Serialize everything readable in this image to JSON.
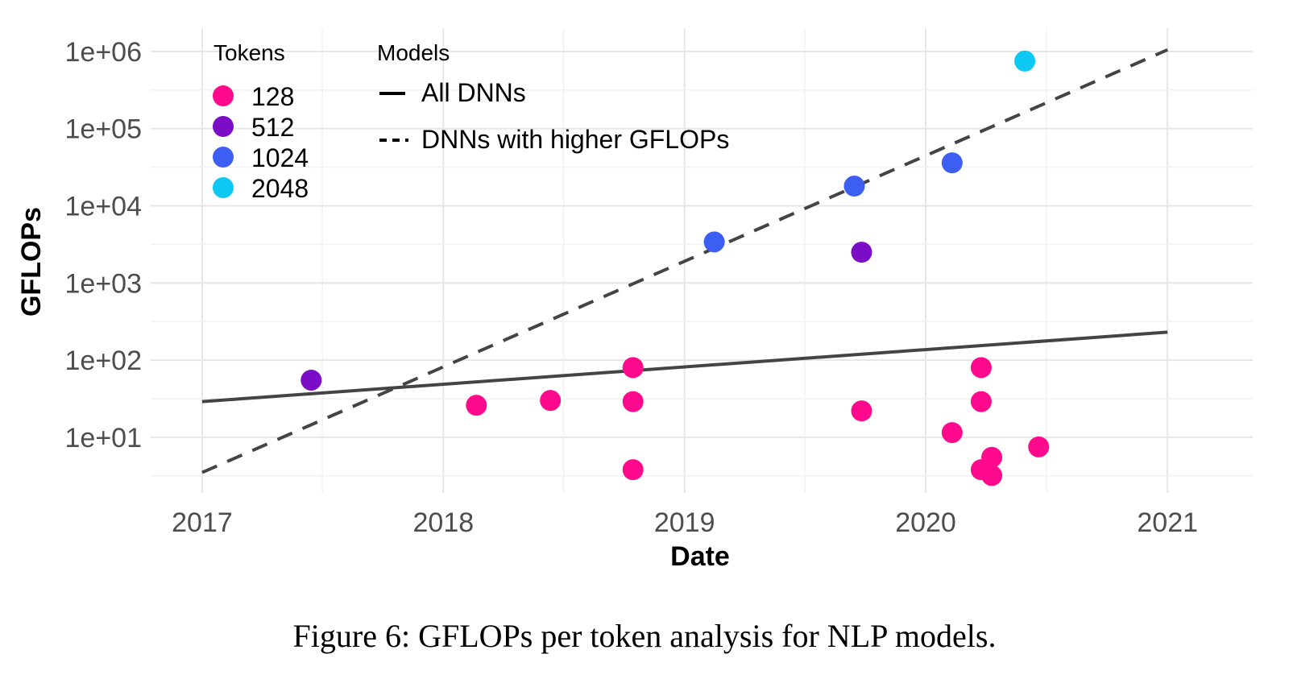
{
  "chart_data": {
    "type": "scatter",
    "xlabel": "Date",
    "ylabel": "GFLOPs",
    "xlim": [
      "2016-10-15",
      "2021-05-10"
    ],
    "ylim": [
      1.9,
      2000000
    ],
    "yscale": "log",
    "x_ticks": [
      "2017",
      "2018",
      "2019",
      "2020",
      "2021"
    ],
    "y_ticks": [
      {
        "value": 10,
        "label": "1e+01"
      },
      {
        "value": 100,
        "label": "1e+02"
      },
      {
        "value": 1000,
        "label": "1e+03"
      },
      {
        "value": 10000,
        "label": "1e+04"
      },
      {
        "value": 100000,
        "label": "1e+05"
      },
      {
        "value": 1000000,
        "label": "1e+06"
      }
    ],
    "grid": true,
    "legend_tokens": {
      "title": "Tokens",
      "placement": "top-left",
      "entries": [
        {
          "label": "128",
          "color": "#ff0a8c"
        },
        {
          "label": "512",
          "color": "#7b0dc6"
        },
        {
          "label": "1024",
          "color": "#3d5ef2"
        },
        {
          "label": "2048",
          "color": "#0dc8f2"
        }
      ]
    },
    "legend_models": {
      "title": "Models",
      "placement": "top-left",
      "entries": [
        {
          "label": "All DNNs",
          "style": "solid"
        },
        {
          "label": "DNNs with higher GFLOPs",
          "style": "dashed"
        }
      ]
    },
    "points": [
      {
        "x": "2017-06-15",
        "y": 55,
        "tokens": "512"
      },
      {
        "x": "2018-02-20",
        "y": 26,
        "tokens": "128"
      },
      {
        "x": "2018-06-12",
        "y": 30,
        "tokens": "128"
      },
      {
        "x": "2018-10-15",
        "y": 80,
        "tokens": "128"
      },
      {
        "x": "2018-10-15",
        "y": 29,
        "tokens": "128"
      },
      {
        "x": "2018-10-15",
        "y": 3.8,
        "tokens": "128"
      },
      {
        "x": "2019-02-15",
        "y": 3400,
        "tokens": "1024"
      },
      {
        "x": "2019-09-15",
        "y": 18000,
        "tokens": "1024"
      },
      {
        "x": "2019-09-26",
        "y": 2500,
        "tokens": "512"
      },
      {
        "x": "2019-09-26",
        "y": 22,
        "tokens": "128"
      },
      {
        "x": "2020-02-10",
        "y": 36000,
        "tokens": "1024"
      },
      {
        "x": "2020-02-10",
        "y": 11.5,
        "tokens": "128"
      },
      {
        "x": "2020-03-25",
        "y": 80,
        "tokens": "128"
      },
      {
        "x": "2020-03-25",
        "y": 29,
        "tokens": "128"
      },
      {
        "x": "2020-03-25",
        "y": 3.8,
        "tokens": "128"
      },
      {
        "x": "2020-04-10",
        "y": 5.5,
        "tokens": "128"
      },
      {
        "x": "2020-04-10",
        "y": 3.2,
        "tokens": "128"
      },
      {
        "x": "2020-05-30",
        "y": 750000,
        "tokens": "2048"
      },
      {
        "x": "2020-06-20",
        "y": 7.5,
        "tokens": "128"
      }
    ],
    "lines": [
      {
        "name": "All DNNs",
        "style": "solid",
        "color": "#444444",
        "x": [
          "2017-01-01",
          "2021-01-01"
        ],
        "y": [
          29,
          230
        ]
      },
      {
        "name": "DNNs with higher GFLOPs",
        "style": "dashed",
        "color": "#444444",
        "x": [
          "2017-01-01",
          "2021-01-01"
        ],
        "y": [
          3.5,
          1050000
        ]
      }
    ]
  },
  "caption": "Figure 6: GFLOPs per token analysis for NLP models."
}
